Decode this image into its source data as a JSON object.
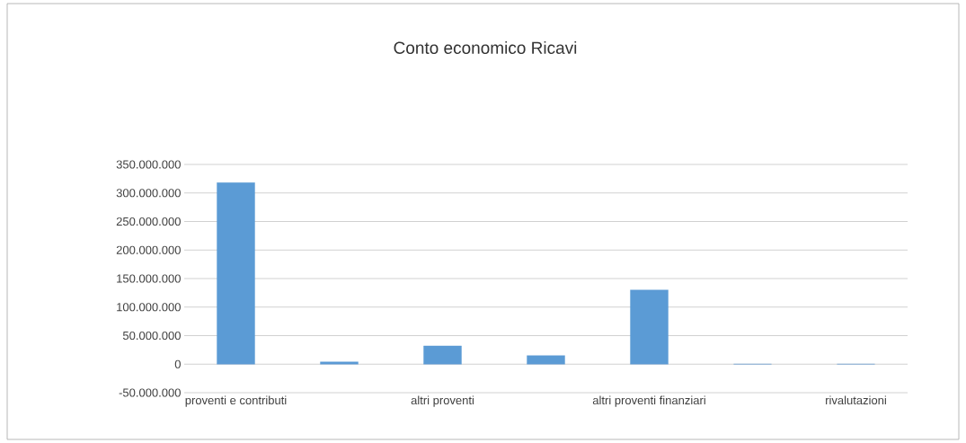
{
  "chart_data": {
    "type": "bar",
    "title": "Conto economico Ricavi",
    "categories": [
      "proventi e contributi",
      null,
      "altri proventi",
      null,
      "altri proventi finanziari",
      null,
      "rivalutazioni"
    ],
    "values": [
      318000000,
      4000000,
      32000000,
      15000000,
      130000000,
      0,
      0
    ],
    "color": "#5b9bd5",
    "ylim": [
      -50000000,
      350000000
    ],
    "yticks": [
      {
        "value": -50000000,
        "label": "-50.000.000"
      },
      {
        "value": 0,
        "label": "0"
      },
      {
        "value": 50000000,
        "label": "50.000.000"
      },
      {
        "value": 100000000,
        "label": "100.000.000"
      },
      {
        "value": 150000000,
        "label": "150.000.000"
      },
      {
        "value": 200000000,
        "label": "200.000.000"
      },
      {
        "value": 250000000,
        "label": "250.000.000"
      },
      {
        "value": 300000000,
        "label": "300.000.000"
      },
      {
        "value": 350000000,
        "label": "350.000.000"
      }
    ],
    "grid": "y"
  }
}
